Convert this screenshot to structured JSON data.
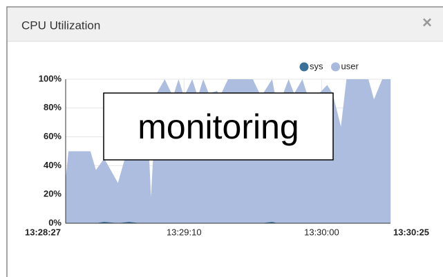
{
  "panel": {
    "title": "CPU Utilization",
    "close": "×"
  },
  "overlay": "monitoring",
  "chart_data": {
    "type": "area",
    "x": [
      0,
      1,
      9,
      11,
      14,
      19,
      23,
      27,
      30,
      31,
      33,
      36,
      39,
      41,
      43,
      46,
      48,
      50,
      52,
      55,
      56,
      59,
      68,
      71,
      75,
      77,
      81,
      83,
      86,
      88,
      92,
      95,
      97,
      100,
      102,
      110,
      112,
      115,
      118
    ],
    "series": [
      {
        "name": "sys",
        "color": "#3a6f9a",
        "values": [
          0,
          0,
          0,
          0,
          1,
          0,
          1,
          0,
          0,
          0,
          0,
          0,
          0,
          0,
          0,
          0,
          0,
          0,
          0,
          0,
          0,
          0,
          0,
          0,
          1,
          0,
          0,
          0,
          0,
          0,
          0,
          0,
          0,
          0,
          0,
          0,
          0,
          0,
          0
        ]
      },
      {
        "name": "user",
        "color": "#a8b9dd",
        "values": [
          30,
          50,
          50,
          37,
          45,
          28,
          55,
          60,
          60,
          18,
          90,
          100,
          88,
          100,
          88,
          100,
          88,
          100,
          90,
          92,
          88,
          100,
          100,
          88,
          100,
          80,
          100,
          90,
          100,
          88,
          90,
          96,
          90,
          67,
          100,
          100,
          86,
          100,
          100
        ]
      }
    ],
    "xlim": [
      0,
      118
    ],
    "xticks": [
      {
        "value": 0,
        "label": "13:28:27"
      },
      {
        "value": 43,
        "label": "13:29:10"
      },
      {
        "value": 93,
        "label": "13:30:00"
      },
      {
        "value": 118,
        "label": "13:30:25"
      }
    ],
    "ylim": [
      0,
      100
    ],
    "yticks": [
      {
        "value": 0,
        "label": "0%"
      },
      {
        "value": 20,
        "label": "20%"
      },
      {
        "value": 40,
        "label": "40%"
      },
      {
        "value": 60,
        "label": "60%"
      },
      {
        "value": 80,
        "label": "80%"
      },
      {
        "value": 100,
        "label": "100%"
      }
    ],
    "grid": true,
    "legend": "top-right"
  }
}
